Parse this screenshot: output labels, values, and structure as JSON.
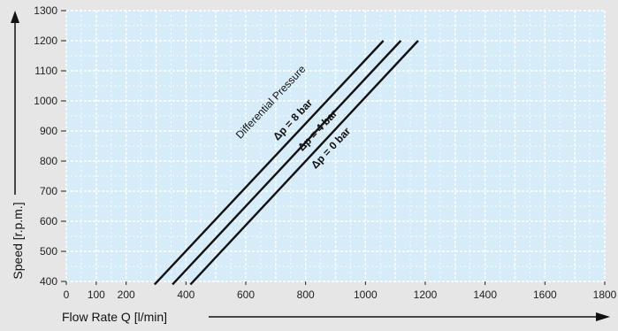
{
  "chart_data": {
    "type": "line",
    "title": "",
    "xlabel": "Flow Rate Q [l/min]",
    "ylabel": "Speed [r.p.m.]",
    "xlim": [
      0,
      1800
    ],
    "ylim": [
      400,
      1300
    ],
    "x_ticks": [
      0,
      100,
      200,
      400,
      600,
      800,
      1000,
      1200,
      1400,
      1600,
      1800
    ],
    "y_ticks": [
      400,
      500,
      600,
      700,
      800,
      900,
      1000,
      1100,
      1200,
      1300
    ],
    "grid": true,
    "legend": "none",
    "annotations": {
      "group_label": "Differential Pressure"
    },
    "series": [
      {
        "name": "Δp = 8 bar",
        "x": [
          295,
          1060
        ],
        "y": [
          390,
          1200
        ]
      },
      {
        "name": "Δp = 4 bar",
        "x": [
          355,
          1118
        ],
        "y": [
          390,
          1200
        ]
      },
      {
        "name": "Δp = 0 bar",
        "x": [
          415,
          1176
        ],
        "y": [
          390,
          1200
        ]
      }
    ],
    "colors": {
      "plot_background": "#d6ecf9",
      "grid": "#ffffff",
      "line": "#111111",
      "axis": "#222222",
      "page_background": "#e6e6e6"
    }
  }
}
